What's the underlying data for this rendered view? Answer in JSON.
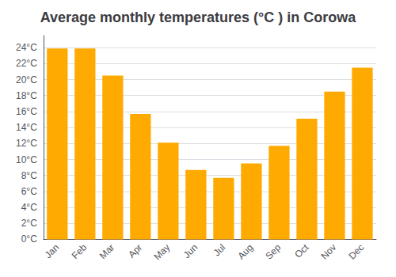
{
  "chart_data": {
    "type": "bar",
    "title": "Average monthly temperatures (°C ) in Corowa",
    "categories": [
      "Jan",
      "Feb",
      "Mar",
      "Apr",
      "May",
      "Jun",
      "Jul",
      "Aug",
      "Sep",
      "Oct",
      "Nov",
      "Dec"
    ],
    "values": [
      23.9,
      23.9,
      20.5,
      15.7,
      12.1,
      8.7,
      7.7,
      9.5,
      11.7,
      15.1,
      18.5,
      21.5
    ],
    "color": "#FFAA00",
    "ylim": [
      0,
      25.5
    ],
    "yticks": [
      {
        "value": 0,
        "label": "0°C"
      },
      {
        "value": 2,
        "label": "2°C"
      },
      {
        "value": 4,
        "label": "4°C"
      },
      {
        "value": 6,
        "label": "6°C"
      },
      {
        "value": 8,
        "label": "8°C"
      },
      {
        "value": 10,
        "label": "10°C"
      },
      {
        "value": 12,
        "label": "12°C"
      },
      {
        "value": 14,
        "label": "14°C"
      },
      {
        "value": 16,
        "label": "16°C"
      },
      {
        "value": 18,
        "label": "18°C"
      },
      {
        "value": 20,
        "label": "20°C"
      },
      {
        "value": 22,
        "label": "22°C"
      },
      {
        "value": 24,
        "label": "24°C"
      }
    ],
    "grid": true
  }
}
